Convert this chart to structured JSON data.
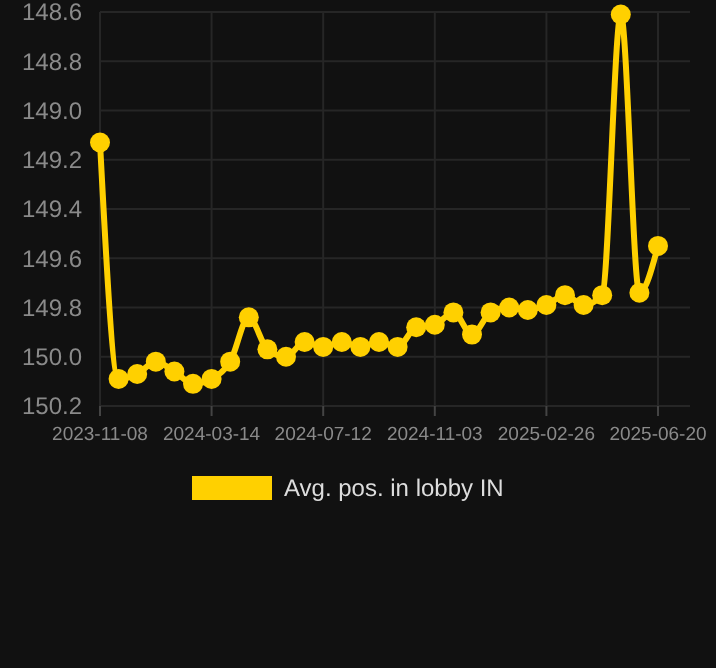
{
  "chart_data": {
    "type": "line",
    "categories": [
      "2023-11-08",
      null,
      null,
      null,
      null,
      null,
      "2024-03-14",
      null,
      null,
      null,
      null,
      null,
      "2024-07-12",
      null,
      null,
      null,
      null,
      null,
      "2024-11-03",
      null,
      null,
      null,
      null,
      null,
      "2025-02-26",
      null,
      null,
      null,
      null,
      null,
      "2025-06-20"
    ],
    "series": [
      {
        "name": "Avg. pos. in lobby IN",
        "color": "#ffd000",
        "values": [
          149.13,
          150.09,
          150.07,
          150.02,
          150.06,
          150.11,
          150.09,
          150.02,
          149.84,
          149.97,
          150.0,
          149.94,
          149.96,
          149.94,
          149.96,
          149.94,
          149.96,
          149.88,
          149.87,
          149.82,
          149.91,
          149.82,
          149.8,
          149.81,
          149.79,
          149.75,
          149.79,
          149.75,
          148.61,
          149.74,
          149.55
        ]
      }
    ],
    "ylim": [
      150.2,
      148.6
    ],
    "yticks": [
      148.6,
      148.8,
      {
        "value": 149,
        "label": "149.0"
      },
      149.2,
      149.4,
      149.6,
      149.8,
      {
        "value": 150,
        "label": "150.0"
      },
      150.2
    ],
    "grid": true,
    "legend": "bottom",
    "marker": "circle",
    "line_style": "solid"
  }
}
